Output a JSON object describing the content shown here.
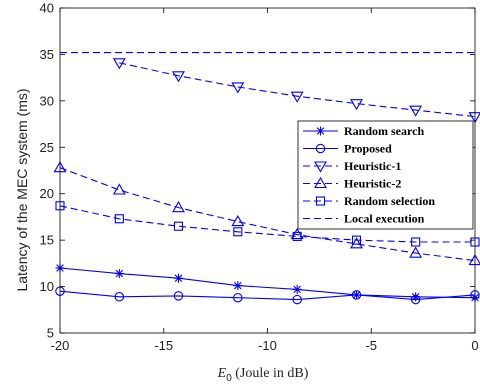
{
  "chart_data": {
    "type": "line",
    "xlabel": "E_0 (Joule in dB)",
    "xlabel_parts": {
      "symbol": "E",
      "subscript": "0",
      "rest": " (Joule in dB)"
    },
    "ylabel": "Latency of the MEC system (ms)",
    "xlim": [
      -20,
      0
    ],
    "ylim": [
      5,
      40
    ],
    "xticks": [
      -20,
      -15,
      -10,
      -5,
      0
    ],
    "yticks": [
      5,
      10,
      15,
      20,
      25,
      30,
      35,
      40
    ],
    "xtick_labels": [
      "-20",
      "-15",
      "-10",
      "-5",
      "0"
    ],
    "ytick_labels": [
      "5",
      "10",
      "15",
      "20",
      "25",
      "30",
      "35",
      "40"
    ],
    "grid": false,
    "legend_position": "right",
    "color": "#0000ff",
    "series": [
      {
        "name": "Random search",
        "marker": "asterisk",
        "linestyle": "solid",
        "x": [
          -20,
          -17.14,
          -14.29,
          -11.43,
          -8.57,
          -5.71,
          -2.86,
          0
        ],
        "y": [
          12.0,
          11.4,
          10.9,
          10.1,
          9.7,
          9.1,
          8.9,
          8.8
        ]
      },
      {
        "name": "Proposed",
        "marker": "circle",
        "linestyle": "solid",
        "x": [
          -20,
          -17.14,
          -14.29,
          -11.43,
          -8.57,
          -5.71,
          -2.86,
          0
        ],
        "y": [
          9.5,
          8.9,
          9.0,
          8.8,
          8.6,
          9.1,
          8.6,
          9.1
        ]
      },
      {
        "name": "Heuristic-1",
        "marker": "triangle-down",
        "linestyle": "dashed",
        "x": [
          -17.14,
          -14.29,
          -11.43,
          -8.57,
          -5.71,
          -2.86,
          0
        ],
        "y": [
          34.1,
          32.7,
          31.5,
          30.5,
          29.7,
          29.0,
          28.3
        ]
      },
      {
        "name": "Heuristic-2",
        "marker": "triangle-up",
        "linestyle": "dashed",
        "x": [
          -20,
          -17.14,
          -14.29,
          -11.43,
          -8.57,
          -5.71,
          -2.86,
          0
        ],
        "y": [
          22.8,
          20.4,
          18.5,
          17.0,
          15.6,
          14.6,
          13.6,
          12.8
        ]
      },
      {
        "name": "Random selection",
        "marker": "square",
        "linestyle": "dashed",
        "x": [
          -20,
          -17.14,
          -14.29,
          -11.43,
          -8.57,
          -5.71,
          -2.86,
          0
        ],
        "y": [
          18.7,
          17.3,
          16.5,
          15.9,
          15.4,
          15.0,
          14.8,
          14.8
        ]
      },
      {
        "name": "Local execution",
        "marker": "none",
        "linestyle": "dashed",
        "x": [
          -20,
          0
        ],
        "y": [
          35.2,
          35.2
        ]
      }
    ]
  }
}
